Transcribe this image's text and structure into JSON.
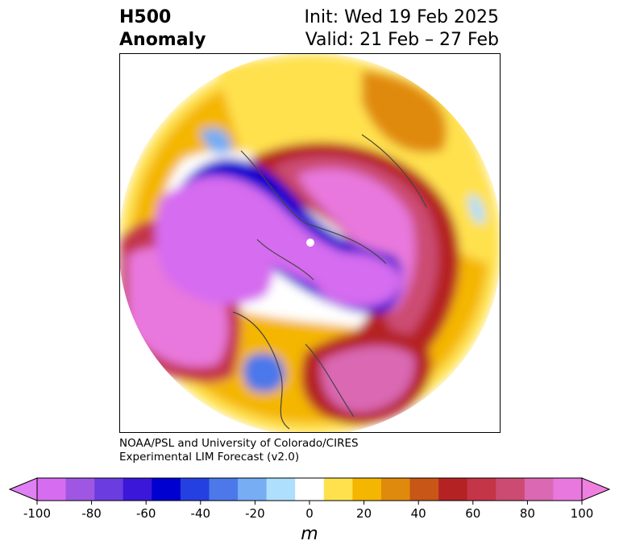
{
  "title": {
    "left_line1": "H500",
    "left_line2": "Anomaly",
    "right_line1": "Init: Wed 19 Feb 2025",
    "right_line2": "Valid: 21 Feb – 27 Feb"
  },
  "credit": {
    "line1": "NOAA/PSL and University of Colorado/CIRES",
    "line2": "Experimental LIM Forecast (v2.0)"
  },
  "colorbar": {
    "unit": "m",
    "ticks": [
      "-100",
      "-80",
      "-60",
      "-40",
      "-20",
      "0",
      "20",
      "40",
      "60",
      "80",
      "100"
    ],
    "levels": [
      -100,
      -90,
      -80,
      -70,
      -60,
      -50,
      -40,
      -30,
      -20,
      -10,
      10,
      20,
      30,
      40,
      50,
      60,
      70,
      80,
      90,
      100
    ],
    "colors": [
      "#d66cf0",
      "#9f57e3",
      "#6b3de0",
      "#3b17d9",
      "#0000d0",
      "#2540e0",
      "#4c78ea",
      "#76adf3",
      "#aedffc",
      "#ffffff",
      "#ffe14d",
      "#f4b600",
      "#e08a0d",
      "#c85616",
      "#b52224",
      "#c43548",
      "#cc4b72",
      "#da68b2",
      "#e878dd"
    ],
    "under_color": "#e080f5",
    "over_color": "#f080e0"
  },
  "map": {
    "projection": "north-polar-stereographic",
    "field": "500 hPa geopotential height anomaly"
  }
}
